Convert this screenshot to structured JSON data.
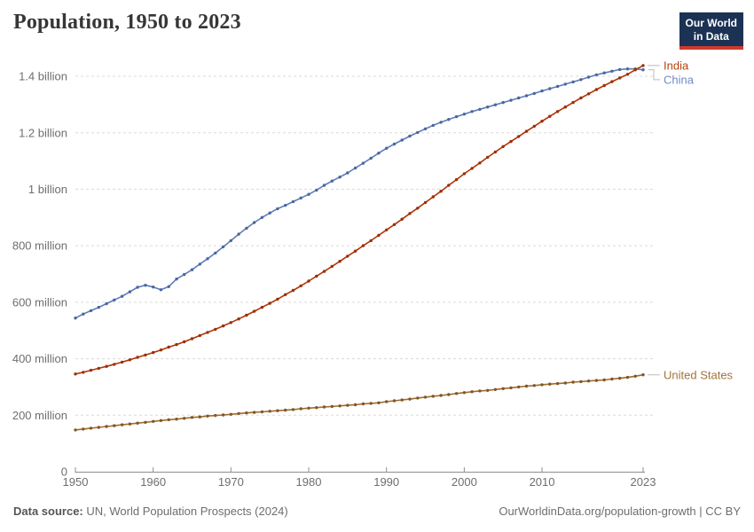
{
  "header": {
    "title": "Population, 1950 to 2023",
    "logo_line1": "Our World",
    "logo_line2": "in Data"
  },
  "footer": {
    "source_label": "Data source:",
    "source_text": "UN, World Population Prospects (2024)",
    "credit": "OurWorldinData.org/population-growth | CC BY"
  },
  "colors": {
    "background": "#ffffff",
    "title_text": "#363636",
    "grid": "#dadada",
    "axis": "#8f8f8f",
    "axis_text": "#6e6e6e",
    "connector": "#bcbcbc",
    "logo_bg": "#1c3254",
    "logo_bar": "#cc3a2e",
    "footer_text": "#6e6e6e"
  },
  "chart_data": {
    "type": "line",
    "title": "Population, 1950 to 2023",
    "xlabel": "",
    "ylabel": "",
    "unit": "people (millions)",
    "xlim": [
      1950,
      2023
    ],
    "ylim_millions": [
      0,
      1400
    ],
    "grid": "horizontal dashed",
    "legend_position": "right of line ends",
    "x_ticks": [
      {
        "value": 1950,
        "label": "1950"
      },
      {
        "value": 1960,
        "label": "1960"
      },
      {
        "value": 1970,
        "label": "1970"
      },
      {
        "value": 1980,
        "label": "1980"
      },
      {
        "value": 1990,
        "label": "1990"
      },
      {
        "value": 2000,
        "label": "2000"
      },
      {
        "value": 2010,
        "label": "2010"
      },
      {
        "value": 2023,
        "label": "2023"
      }
    ],
    "y_ticks": [
      {
        "value": 0,
        "label": "0"
      },
      {
        "value": 200,
        "label": "200 million"
      },
      {
        "value": 400,
        "label": "400 million"
      },
      {
        "value": 600,
        "label": "600 million"
      },
      {
        "value": 800,
        "label": "800 million"
      },
      {
        "value": 1000,
        "label": "1 billion"
      },
      {
        "value": 1200,
        "label": "1.2 billion"
      },
      {
        "value": 1400,
        "label": "1.4 billion"
      }
    ],
    "years": [
      1950,
      1951,
      1952,
      1953,
      1954,
      1955,
      1956,
      1957,
      1958,
      1959,
      1960,
      1961,
      1962,
      1963,
      1964,
      1965,
      1966,
      1967,
      1968,
      1969,
      1970,
      1971,
      1972,
      1973,
      1974,
      1975,
      1976,
      1977,
      1978,
      1979,
      1980,
      1981,
      1982,
      1983,
      1984,
      1985,
      1986,
      1987,
      1988,
      1989,
      1990,
      1991,
      1992,
      1993,
      1994,
      1995,
      1996,
      1997,
      1998,
      1999,
      2000,
      2001,
      2002,
      2003,
      2004,
      2005,
      2006,
      2007,
      2008,
      2009,
      2010,
      2011,
      2012,
      2013,
      2014,
      2015,
      2016,
      2017,
      2018,
      2019,
      2020,
      2021,
      2022,
      2023
    ],
    "series": [
      {
        "name": "India",
        "color": "#b13507",
        "dot_color": "#992f08",
        "label_color": "#b5420f",
        "values_millions": [
          346,
          352,
          359,
          366,
          373,
          380,
          388,
          396,
          405,
          413,
          422,
          431,
          441,
          450,
          460,
          471,
          482,
          493,
          504,
          516,
          528,
          541,
          554,
          568,
          582,
          596,
          611,
          627,
          642,
          658,
          675,
          692,
          709,
          727,
          745,
          763,
          781,
          800,
          818,
          837,
          856,
          875,
          894,
          914,
          933,
          953,
          973,
          993,
          1014,
          1034,
          1055,
          1074,
          1093,
          1113,
          1132,
          1151,
          1169,
          1187,
          1205,
          1223,
          1241,
          1258,
          1275,
          1291,
          1307,
          1323,
          1338,
          1353,
          1367,
          1381,
          1394,
          1407,
          1423,
          1438
        ]
      },
      {
        "name": "China",
        "color": "#5f7cb8",
        "dot_color": "#4a679f",
        "label_color": "#7289c4",
        "values_millions": [
          544,
          558,
          570,
          582,
          595,
          608,
          621,
          637,
          653,
          660,
          654,
          644,
          655,
          682,
          698,
          715,
          735,
          754,
          774,
          796,
          818,
          841,
          862,
          882,
          900,
          916,
          931,
          943,
          956,
          969,
          982,
          997,
          1014,
          1029,
          1043,
          1058,
          1075,
          1092,
          1110,
          1128,
          1145,
          1160,
          1174,
          1188,
          1201,
          1214,
          1226,
          1237,
          1247,
          1257,
          1266,
          1275,
          1283,
          1291,
          1299,
          1307,
          1315,
          1323,
          1331,
          1339,
          1348,
          1356,
          1364,
          1372,
          1380,
          1388,
          1397,
          1405,
          1412,
          1418,
          1424,
          1426,
          1426,
          1423
        ]
      },
      {
        "name": "United States",
        "color": "#9d6d34",
        "dot_color": "#815723",
        "label_color": "#a2743b",
        "values_millions": [
          148,
          151,
          154,
          157,
          160,
          163,
          166,
          169,
          172,
          175,
          178,
          181,
          184,
          186,
          189,
          192,
          194,
          197,
          199,
          201,
          203,
          206,
          208,
          210,
          212,
          214,
          216,
          218,
          220,
          223,
          225,
          227,
          229,
          231,
          233,
          235,
          237,
          240,
          242,
          244,
          248,
          251,
          254,
          257,
          261,
          264,
          267,
          270,
          273,
          277,
          280,
          283,
          286,
          288,
          291,
          294,
          297,
          300,
          303,
          305,
          308,
          310,
          312,
          314,
          317,
          319,
          321,
          323,
          325,
          328,
          331,
          334,
          338,
          343
        ]
      }
    ]
  }
}
